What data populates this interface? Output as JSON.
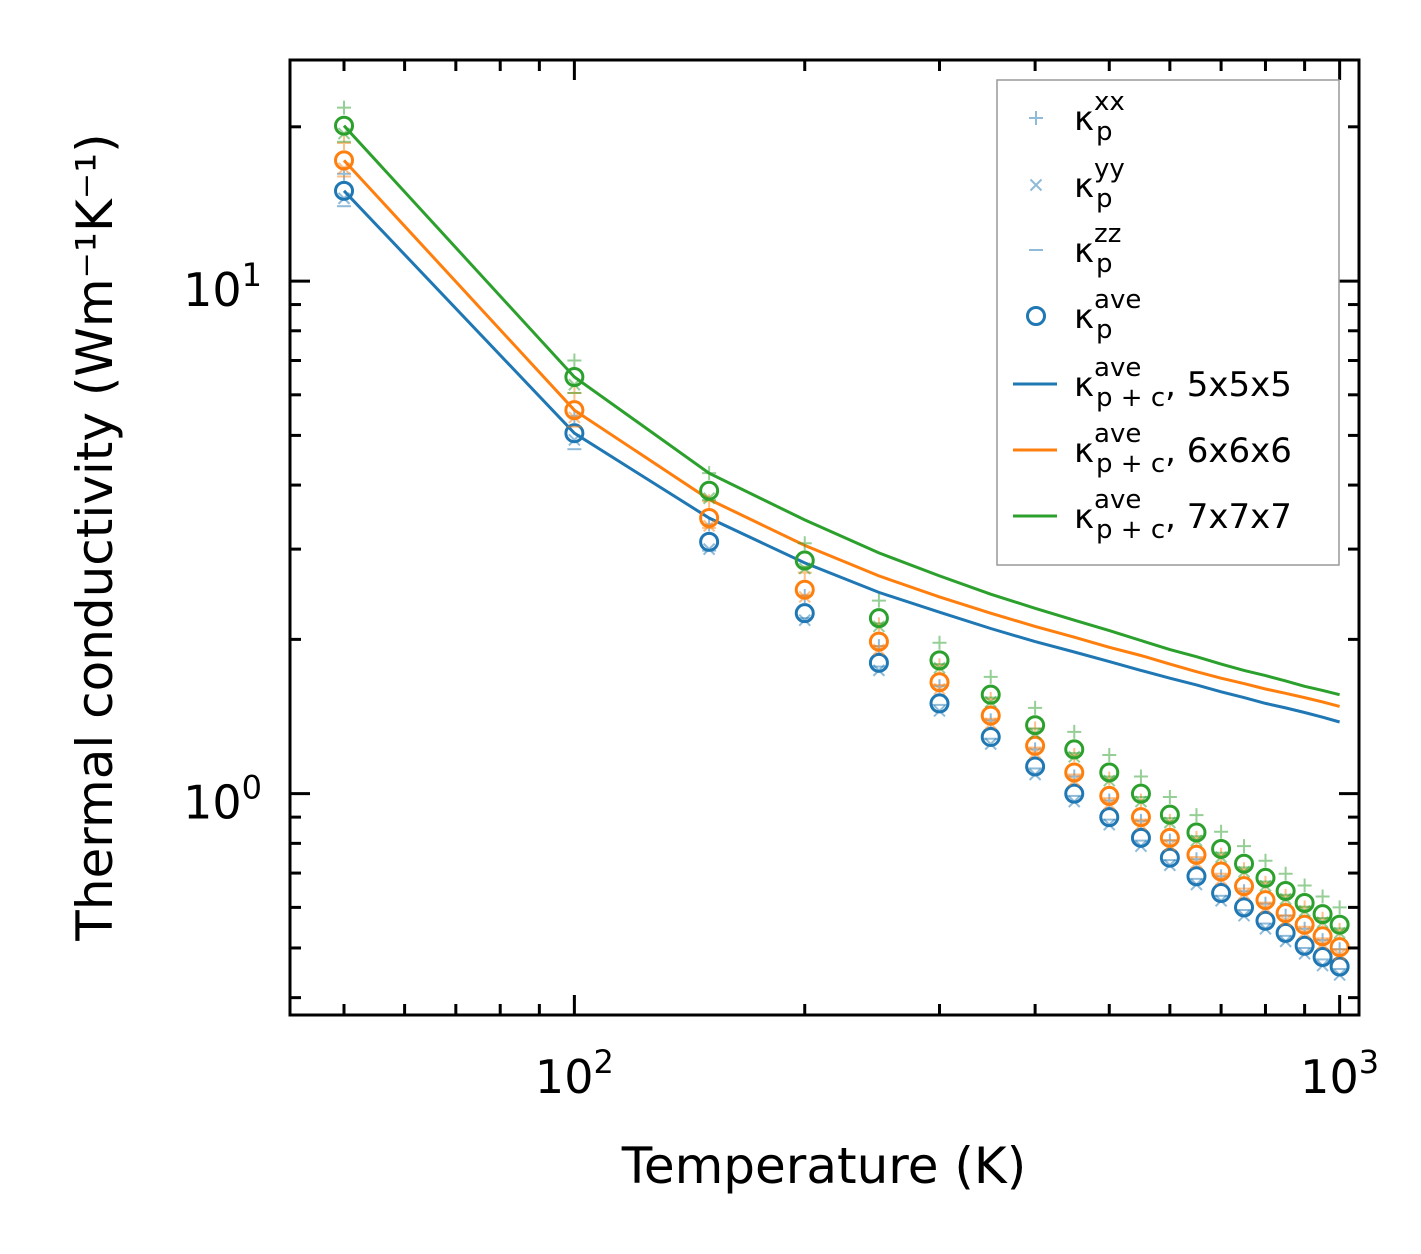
{
  "chart_data": {
    "type": "scatter",
    "xlabel": "Temperature (K)",
    "ylabel": "Thermal conductivity (Wm⁻¹K⁻¹)",
    "xscale": "log",
    "yscale": "log",
    "xlim": [
      42.5,
      1060
    ],
    "ylim": [
      0.37,
      27
    ],
    "x_major_ticks": [
      {
        "value": 100,
        "base": "10",
        "exp": "2"
      },
      {
        "value": 1000,
        "base": "10",
        "exp": "3"
      }
    ],
    "y_major_ticks": [
      {
        "value": 1,
        "base": "10",
        "exp": "0"
      },
      {
        "value": 10,
        "base": "10",
        "exp": "1"
      }
    ],
    "legend_position": "upper-right",
    "legend": [
      {
        "marker": "plus",
        "main": "κ",
        "sup": "xx",
        "sub": "p",
        "suffix": ""
      },
      {
        "marker": "x",
        "main": "κ",
        "sup": "yy",
        "sub": "p",
        "suffix": ""
      },
      {
        "marker": "dash",
        "main": "κ",
        "sup": "zz",
        "sub": "p",
        "suffix": ""
      },
      {
        "marker": "circle",
        "main": "κ",
        "sup": "ave",
        "sub": "p",
        "suffix": ""
      },
      {
        "marker": "line",
        "color": "#1f77b4",
        "main": "κ",
        "sup": "ave",
        "sub": "p + c",
        "suffix": ", 5x5x5"
      },
      {
        "marker": "line",
        "color": "#ff7f0e",
        "main": "κ",
        "sup": "ave",
        "sub": "p + c",
        "suffix": ", 6x6x6"
      },
      {
        "marker": "line",
        "color": "#2ca02c",
        "main": "κ",
        "sup": "ave",
        "sub": "p + c",
        "suffix": ", 7x7x7"
      }
    ],
    "colors": {
      "blue": "#1f77b4",
      "orange": "#ff7f0e",
      "green": "#2ca02c"
    },
    "x": [
      50,
      100,
      150,
      200,
      250,
      300,
      350,
      400,
      450,
      500,
      550,
      600,
      650,
      700,
      750,
      800,
      850,
      900,
      950,
      1000
    ],
    "series": [
      {
        "name": "5x5x5",
        "color": "#1f77b4",
        "kappa_p_ave": [
          15.0,
          5.05,
          3.1,
          2.25,
          1.8,
          1.5,
          1.29,
          1.13,
          1.0,
          0.9,
          0.82,
          0.75,
          0.69,
          0.64,
          0.6,
          0.565,
          0.535,
          0.505,
          0.48,
          0.46
        ],
        "kappa_p_xx": [
          16.2,
          5.45,
          3.35,
          2.43,
          1.94,
          1.62,
          1.39,
          1.22,
          1.08,
          0.97,
          0.885,
          0.81,
          0.745,
          0.69,
          0.645,
          0.61,
          0.578,
          0.545,
          0.518,
          0.497
        ],
        "kappa_p_yy": [
          14.5,
          4.9,
          3.0,
          2.18,
          1.74,
          1.45,
          1.25,
          1.09,
          0.965,
          0.87,
          0.79,
          0.725,
          0.665,
          0.618,
          0.578,
          0.545,
          0.515,
          0.487,
          0.462,
          0.443
        ],
        "kappa_p_zz": [
          14.0,
          4.7,
          2.98,
          2.2,
          1.77,
          1.49,
          1.28,
          1.12,
          0.99,
          0.89,
          0.81,
          0.742,
          0.682,
          0.632,
          0.593,
          0.558,
          0.528,
          0.5,
          0.475,
          0.455
        ],
        "kappa_pc_ave": [
          15.0,
          5.05,
          3.45,
          2.82,
          2.47,
          2.26,
          2.1,
          1.98,
          1.89,
          1.81,
          1.74,
          1.68,
          1.63,
          1.58,
          1.54,
          1.5,
          1.47,
          1.44,
          1.41,
          1.38
        ]
      },
      {
        "name": "6x6x6",
        "color": "#ff7f0e",
        "kappa_p_ave": [
          17.2,
          5.6,
          3.45,
          2.5,
          1.98,
          1.65,
          1.42,
          1.24,
          1.1,
          0.99,
          0.9,
          0.82,
          0.76,
          0.705,
          0.66,
          0.62,
          0.585,
          0.555,
          0.527,
          0.502
        ],
        "kappa_p_xx": [
          18.6,
          6.05,
          3.72,
          2.7,
          2.14,
          1.78,
          1.53,
          1.34,
          1.19,
          1.07,
          0.97,
          0.885,
          0.82,
          0.76,
          0.712,
          0.67,
          0.632,
          0.6,
          0.57,
          0.542
        ],
        "kappa_p_yy": [
          16.6,
          5.42,
          3.33,
          2.42,
          1.91,
          1.6,
          1.37,
          1.2,
          1.06,
          0.955,
          0.87,
          0.792,
          0.733,
          0.68,
          0.637,
          0.598,
          0.565,
          0.536,
          0.509,
          0.485
        ],
        "kappa_p_zz": [
          16.0,
          5.2,
          3.3,
          2.44,
          1.94,
          1.63,
          1.4,
          1.23,
          1.09,
          0.98,
          0.89,
          0.812,
          0.752,
          0.698,
          0.653,
          0.613,
          0.579,
          0.55,
          0.522,
          0.497
        ],
        "kappa_pc_ave": [
          17.2,
          5.6,
          3.75,
          3.05,
          2.66,
          2.42,
          2.25,
          2.12,
          2.02,
          1.93,
          1.86,
          1.79,
          1.73,
          1.68,
          1.64,
          1.6,
          1.57,
          1.54,
          1.51,
          1.48
        ]
      },
      {
        "name": "7x7x7",
        "color": "#2ca02c",
        "kappa_p_ave": [
          20.1,
          6.5,
          3.9,
          2.85,
          2.2,
          1.82,
          1.56,
          1.36,
          1.22,
          1.1,
          1.0,
          0.91,
          0.84,
          0.78,
          0.73,
          0.685,
          0.646,
          0.612,
          0.582,
          0.555
        ],
        "kappa_p_xx": [
          21.8,
          7.0,
          4.22,
          3.08,
          2.38,
          1.97,
          1.69,
          1.47,
          1.32,
          1.19,
          1.08,
          0.985,
          0.908,
          0.843,
          0.79,
          0.74,
          0.698,
          0.662,
          0.63,
          0.6
        ],
        "kappa_p_yy": [
          19.4,
          6.28,
          3.77,
          2.75,
          2.12,
          1.76,
          1.51,
          1.31,
          1.18,
          1.06,
          0.965,
          0.878,
          0.81,
          0.752,
          0.704,
          0.661,
          0.623,
          0.59,
          0.561,
          0.535
        ],
        "kappa_p_zz": [
          18.7,
          6.05,
          3.74,
          2.77,
          2.15,
          1.79,
          1.54,
          1.34,
          1.2,
          1.08,
          0.985,
          0.896,
          0.826,
          0.767,
          0.718,
          0.674,
          0.635,
          0.602,
          0.572,
          0.546
        ],
        "kappa_pc_ave": [
          20.1,
          6.5,
          4.22,
          3.42,
          2.95,
          2.66,
          2.45,
          2.3,
          2.18,
          2.08,
          1.99,
          1.91,
          1.85,
          1.79,
          1.74,
          1.7,
          1.66,
          1.62,
          1.59,
          1.56
        ]
      }
    ]
  }
}
